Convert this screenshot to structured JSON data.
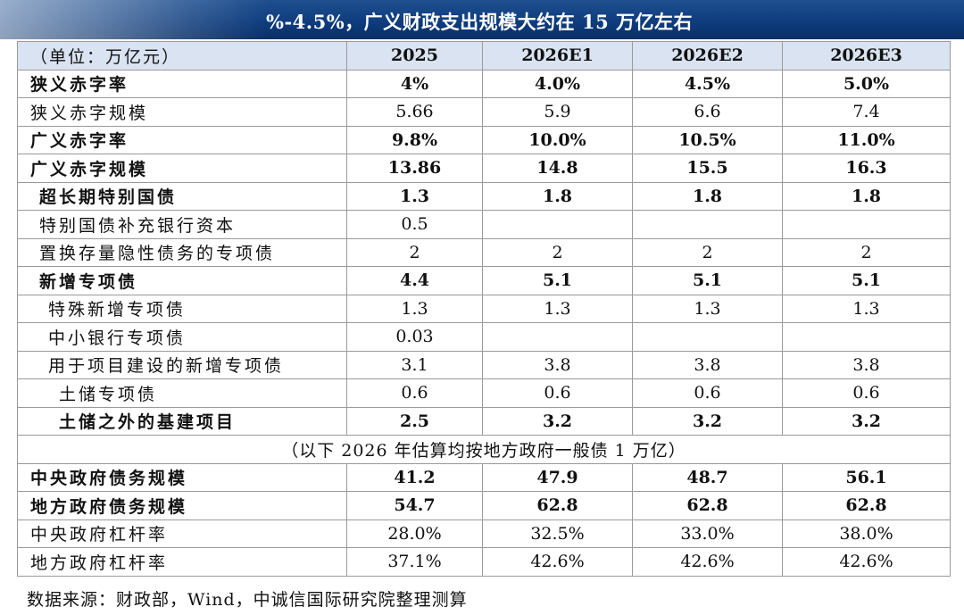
{
  "header": {
    "title": "%-4.5%，广义财政支出规模大约在 15 万亿左右"
  },
  "table": {
    "unit_label": "（单位：万亿元）",
    "columns": [
      "2025",
      "2026E1",
      "2026E2",
      "2026E3"
    ],
    "rows": [
      {
        "label": "狭义赤字率",
        "values": [
          "4%",
          "4.0%",
          "4.5%",
          "5.0%"
        ],
        "bold": true,
        "indent": 0
      },
      {
        "label": "狭义赤字规模",
        "values": [
          "5.66",
          "5.9",
          "6.6",
          "7.4"
        ],
        "bold": false,
        "indent": 0
      },
      {
        "label": "广义赤字率",
        "values": [
          "9.8%",
          "10.0%",
          "10.5%",
          "11.0%"
        ],
        "bold": true,
        "indent": 0
      },
      {
        "label": "广义赤字规模",
        "values": [
          "13.86",
          "14.8",
          "15.5",
          "16.3"
        ],
        "bold": true,
        "indent": 0
      },
      {
        "label": "超长期特别国债",
        "values": [
          "1.3",
          "1.8",
          "1.8",
          "1.8"
        ],
        "bold": true,
        "indent": 1
      },
      {
        "label": "特别国债补充银行资本",
        "values": [
          "0.5",
          "",
          "",
          ""
        ],
        "bold": false,
        "indent": 1
      },
      {
        "label": "置换存量隐性债务的专项债",
        "values": [
          "2",
          "2",
          "2",
          "2"
        ],
        "bold": false,
        "indent": 1
      },
      {
        "label": "新增专项债",
        "values": [
          "4.4",
          "5.1",
          "5.1",
          "5.1"
        ],
        "bold": true,
        "indent": 1
      },
      {
        "label": "特殊新增专项债",
        "values": [
          "1.3",
          "1.3",
          "1.3",
          "1.3"
        ],
        "bold": false,
        "indent": 2
      },
      {
        "label": "中小银行专项债",
        "values": [
          "0.03",
          "",
          "",
          ""
        ],
        "bold": false,
        "indent": 2
      },
      {
        "label": "用于项目建设的新增专项债",
        "values": [
          "3.1",
          "3.8",
          "3.8",
          "3.8"
        ],
        "bold": false,
        "indent": 2
      },
      {
        "label": "土储专项债",
        "values": [
          "0.6",
          "0.6",
          "0.6",
          "0.6"
        ],
        "bold": false,
        "indent": 3
      },
      {
        "label": "土储之外的基建项目",
        "values": [
          "2.5",
          "3.2",
          "3.2",
          "3.2"
        ],
        "bold": true,
        "indent": 3
      }
    ],
    "note_row": "（以下 2026 年估算均按地方政府一般债 1 万亿）",
    "rows2": [
      {
        "label": "中央政府债务规模",
        "values": [
          "41.2",
          "47.9",
          "48.7",
          "56.1"
        ],
        "bold": true
      },
      {
        "label": "地方政府债务规模",
        "values": [
          "54.7",
          "62.8",
          "62.8",
          "62.8"
        ],
        "bold": true
      },
      {
        "label": "中央政府杠杆率",
        "values": [
          "28.0%",
          "32.5%",
          "33.0%",
          "38.0%"
        ],
        "bold": false
      },
      {
        "label": "地方政府杠杆率",
        "values": [
          "37.1%",
          "42.6%",
          "42.6%",
          "42.6%"
        ],
        "bold": false
      }
    ]
  },
  "source": "数据来源：财政部，Wind，中诚信国际研究院整理测算",
  "colors": {
    "banner": "#0d3b7c",
    "header_bg": "#d9e3f1",
    "border": "#9a9a9a"
  }
}
